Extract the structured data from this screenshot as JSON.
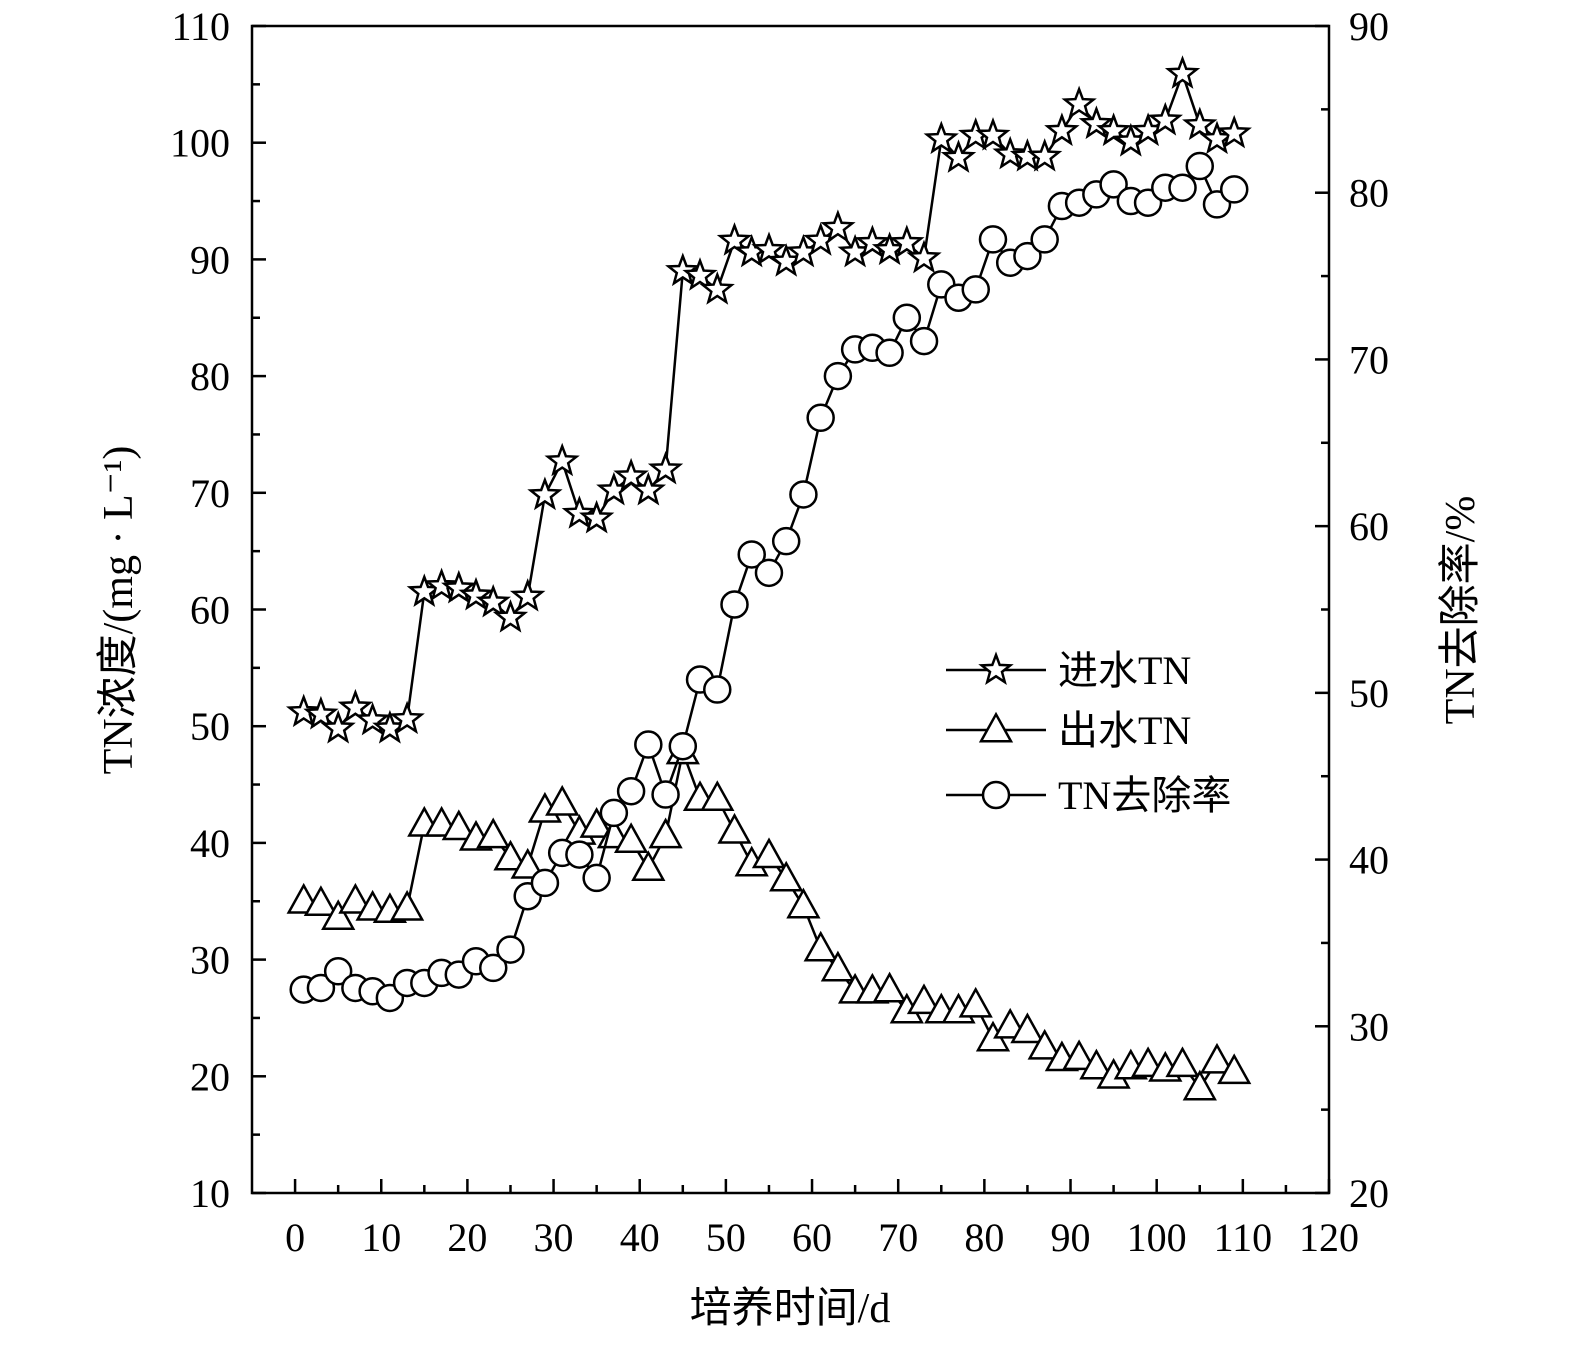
{
  "chart_data": {
    "type": "line",
    "xlabel": "培养时间/d",
    "ylabel": "TN浓度/(mg · L⁻¹)",
    "y2label": "TN去除率/%",
    "xlim": [
      -5,
      120
    ],
    "ylim": [
      10,
      110
    ],
    "y2lim": [
      20,
      90
    ],
    "x_ticks": [
      0,
      10,
      20,
      30,
      40,
      50,
      60,
      70,
      80,
      90,
      100,
      110,
      120
    ],
    "y_ticks": [
      10,
      20,
      30,
      40,
      50,
      60,
      70,
      80,
      90,
      100,
      110
    ],
    "y2_ticks": [
      20,
      30,
      40,
      50,
      60,
      70,
      80,
      90
    ],
    "legend_position": "right-middle",
    "grid": false,
    "series": [
      {
        "name": "进水TN",
        "marker": "star",
        "axis": "left",
        "x": [
          1,
          3,
          5,
          7,
          9,
          11,
          13,
          15,
          17,
          19,
          21,
          23,
          25,
          27,
          29,
          31,
          33,
          35,
          37,
          39,
          41,
          43,
          45,
          47,
          49,
          51,
          53,
          55,
          57,
          59,
          61,
          63,
          65,
          67,
          69,
          71,
          73,
          75,
          77,
          79,
          81,
          83,
          85,
          87,
          89,
          91,
          93,
          95,
          97,
          99,
          101,
          103,
          105,
          107,
          109
        ],
        "values": [
          51.2,
          51,
          49.8,
          51.6,
          50.5,
          49.8,
          50.6,
          61.5,
          62,
          61.8,
          61.2,
          60.6,
          59.3,
          61.1,
          69.8,
          72.7,
          68.2,
          67.8,
          70.2,
          71.4,
          70.2,
          72,
          89,
          88.6,
          87.4,
          91.6,
          90.6,
          90.8,
          89.8,
          90.6,
          91.6,
          92.7,
          90.6,
          91.4,
          90.8,
          91.4,
          90.1,
          100.3,
          98.7,
          100.6,
          100.6,
          99,
          98.8,
          98.8,
          101,
          103.3,
          101.6,
          101,
          100.1,
          101,
          101.9,
          105.9,
          101.5,
          100.3,
          100.8
        ]
      },
      {
        "name": "出水TN",
        "marker": "triangle",
        "axis": "left",
        "x": [
          1,
          3,
          5,
          7,
          9,
          11,
          13,
          15,
          17,
          19,
          21,
          23,
          25,
          27,
          29,
          31,
          33,
          35,
          37,
          39,
          41,
          43,
          45,
          47,
          49,
          51,
          53,
          55,
          57,
          59,
          61,
          63,
          65,
          67,
          69,
          71,
          73,
          75,
          77,
          79,
          81,
          83,
          85,
          87,
          89,
          91,
          93,
          95,
          97,
          99,
          101,
          103,
          105,
          107,
          109
        ],
        "values": [
          35,
          34.8,
          33.6,
          35,
          34.4,
          34.2,
          34.4,
          41.6,
          41.6,
          41.3,
          40.4,
          40.6,
          38.7,
          38,
          42.8,
          43.4,
          40.9,
          41.5,
          40.6,
          40.2,
          37.8,
          40.6,
          47.8,
          43.8,
          43.8,
          41,
          38.2,
          38.9,
          36.9,
          34.6,
          30.9,
          29.2,
          27.3,
          27.3,
          27.4,
          25.6,
          26.4,
          25.6,
          25.6,
          26.1,
          23.2,
          24.3,
          23.9,
          22.5,
          21.5,
          21.6,
          20.8,
          20,
          20.8,
          21,
          20.6,
          21,
          19,
          21.3,
          20.4
        ]
      },
      {
        "name": "TN去除率",
        "marker": "circle",
        "axis": "right",
        "x": [
          1,
          3,
          5,
          7,
          9,
          11,
          13,
          15,
          17,
          19,
          21,
          23,
          25,
          27,
          29,
          31,
          33,
          35,
          37,
          39,
          41,
          43,
          45,
          47,
          49,
          51,
          53,
          55,
          57,
          59,
          61,
          63,
          65,
          67,
          69,
          71,
          73,
          75,
          77,
          79,
          81,
          83,
          85,
          87,
          89,
          91,
          93,
          95,
          97,
          99,
          101,
          103,
          105,
          107,
          109
        ],
        "values": [
          32.2,
          32.3,
          33.3,
          32.3,
          32.1,
          31.7,
          32.6,
          32.6,
          33.2,
          33.1,
          33.9,
          33.5,
          34.6,
          37.8,
          38.6,
          40.4,
          40.3,
          38.9,
          42.8,
          44.1,
          46.9,
          43.9,
          46.8,
          50.8,
          50.2,
          55.3,
          58.3,
          57.2,
          59.1,
          61.9,
          66.5,
          69,
          70.6,
          70.7,
          70.4,
          72.5,
          71.1,
          74.5,
          73.7,
          74.2,
          77.2,
          75.8,
          76.2,
          77.2,
          79.2,
          79.4,
          79.9,
          80.5,
          79.5,
          79.4,
          80.3,
          80.3,
          81.6,
          79.3,
          80.2
        ]
      }
    ]
  }
}
